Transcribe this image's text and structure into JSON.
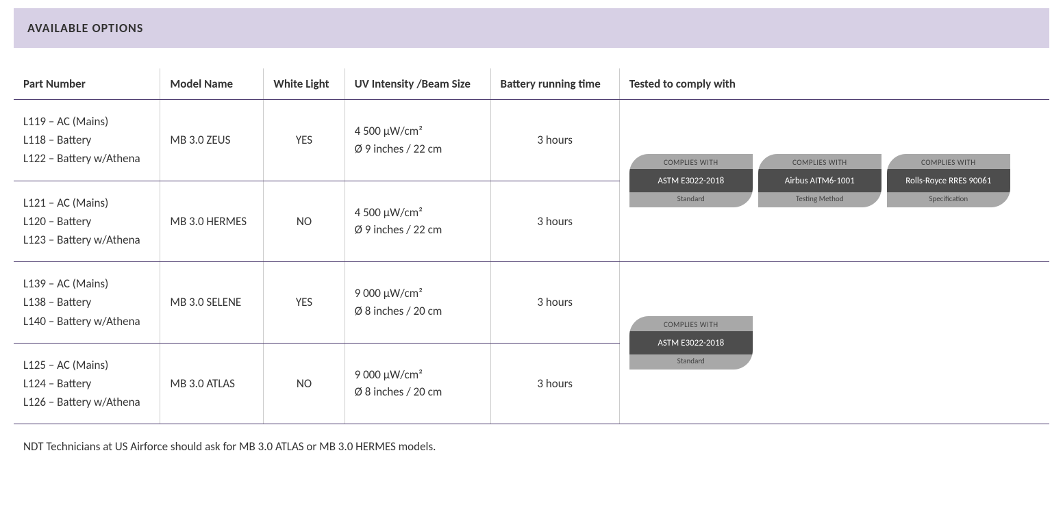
{
  "header": {
    "title": "AVAILABLE OPTIONS"
  },
  "columns": {
    "part_number": "Part Number",
    "model_name": "Model Name",
    "white_light": "White Light",
    "uv_intensity": "UV Intensity /Beam Size",
    "battery": "Battery running time",
    "tested": "Tested to comply with"
  },
  "rows": [
    {
      "parts": [
        "L119 – AC (Mains)",
        "L118 – Battery",
        "L122 – Battery w/Athena"
      ],
      "model": "MB 3.0 ZEUS",
      "white_light": "YES",
      "uv_top": "4 500 μW/cm²",
      "uv_bot": "Ø 9 inches / 22 cm",
      "battery": "3 hours"
    },
    {
      "parts": [
        "L121 – AC (Mains)",
        "L120 – Battery",
        "L123 – Battery w/Athena"
      ],
      "model": "MB 3.0 HERMES",
      "white_light": "NO",
      "uv_top": "4 500 μW/cm²",
      "uv_bot": "Ø 9 inches / 22 cm",
      "battery": "3 hours"
    },
    {
      "parts": [
        "L139 – AC (Mains)",
        "L138 – Battery",
        "L140 – Battery w/Athena"
      ],
      "model": "MB 3.0 SELENE",
      "white_light": "YES",
      "uv_top": "9 000 μW/cm²",
      "uv_bot": "Ø 8 inches / 20 cm",
      "battery": "3 hours"
    },
    {
      "parts": [
        "L125 – AC (Mains)",
        "L124 – Battery",
        "L126 – Battery w/Athena"
      ],
      "model": "MB 3.0 ATLAS",
      "white_light": "NO",
      "uv_top": "9 000 μW/cm²",
      "uv_bot": "Ø 8 inches / 20 cm",
      "battery": "3 hours"
    }
  ],
  "badges_group1": [
    {
      "top": "COMPLIES WITH",
      "mid": "ASTM E3022-2018",
      "bot": "Standard"
    },
    {
      "top": "COMPLIES WITH",
      "mid": "Airbus AITM6-1001",
      "bot": "Testing Method"
    },
    {
      "top": "COMPLIES WITH",
      "mid": "Rolls-Royce RRES 90061",
      "bot": "Specification"
    }
  ],
  "badges_group2": [
    {
      "top": "COMPLIES WITH",
      "mid": "ASTM E3022-2018",
      "bot": "Standard"
    }
  ],
  "footnote": "NDT Technicians at US Airforce should ask for MB 3.0 ATLAS or MB 3.0 HERMES models.",
  "colors": {
    "header_bg": "#d7d0e5",
    "border_main": "#4b3a6e",
    "border_col": "#cccccc",
    "badge_light": "#a8a8a8",
    "badge_dark": "#4d4d4d"
  }
}
